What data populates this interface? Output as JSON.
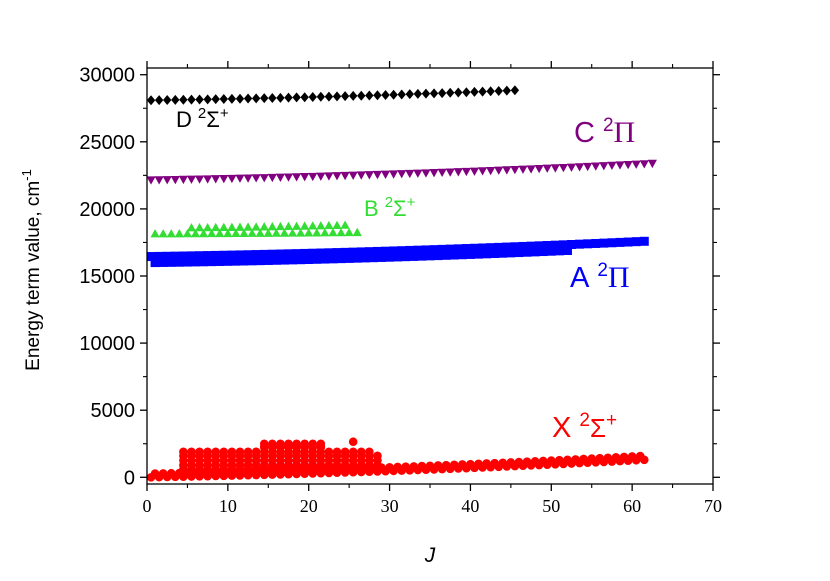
{
  "chart_data": {
    "type": "scatter",
    "title": "",
    "xlabel": "J",
    "ylabel": "Energy term value, cm",
    "ylabel_superscript": "-1",
    "xlim": [
      0,
      70
    ],
    "ylim": [
      -500,
      30500
    ],
    "xticks": [
      0,
      10,
      20,
      30,
      40,
      50,
      60,
      70
    ],
    "yticks": [
      0,
      5000,
      10000,
      15000,
      20000,
      25000,
      30000
    ],
    "grid": false,
    "series": [
      {
        "key": "D",
        "letter": "D",
        "superscript": "2",
        "symbol": "Σ",
        "sign": "+",
        "color": "#000000",
        "marker": "diamond",
        "x_start": 0.5,
        "x_end": 46,
        "x_step": 1,
        "y_start": 28100,
        "y_end": 28850,
        "label_color": "#000000"
      },
      {
        "key": "C",
        "letter": "C",
        "superscript": "2",
        "symbol": "Π",
        "sign": "",
        "color": "#800080",
        "marker": "triangle-down",
        "x_start": 0.5,
        "x_end": 63,
        "x_step": 1,
        "y_start": 22150,
        "y_end": 23400,
        "label_color": "#800080"
      },
      {
        "key": "B",
        "letter": "B",
        "superscript": "2",
        "symbol": "Σ",
        "sign": "+",
        "color": "#33dd33",
        "marker": "triangle-up",
        "rows": [
          {
            "x_start": 1,
            "x_end": 26,
            "y_start": 18150,
            "y_end": 18250
          },
          {
            "x_start": 5.5,
            "x_end": 25,
            "y_start": 18600,
            "y_end": 18800
          }
        ],
        "x_step": 1,
        "label_color": "#33dd33"
      },
      {
        "key": "A",
        "letter": "A",
        "superscript": "2",
        "symbol": "Π",
        "sign": "",
        "color": "#0000ff",
        "marker": "square",
        "rows": [
          {
            "x_start": 0.5,
            "x_end": 62,
            "y_start": 16450,
            "y_end": 17600
          },
          {
            "x_start": 1,
            "x_end": 52,
            "y_start": 16000,
            "y_end": 16900
          }
        ],
        "x_step": 1,
        "label_color": "#0000ff"
      },
      {
        "key": "X",
        "letter": "X",
        "superscript": "2",
        "symbol": "Σ",
        "sign": "+",
        "color": "#ff0000",
        "marker": "circle",
        "rows": [
          {
            "x_start": 0.5,
            "x_end": 61.5,
            "y_start": 0,
            "y_end": 1300
          },
          {
            "x_start": 1,
            "x_end": 61.5,
            "y_start": 280,
            "y_end": 1600
          },
          {
            "x_start": 4.5,
            "x_end": 29,
            "y_start": 580,
            "y_end": 580
          },
          {
            "x_start": 4.5,
            "x_end": 29,
            "y_start": 900,
            "y_end": 900
          },
          {
            "x_start": 4.5,
            "x_end": 29,
            "y_start": 1250,
            "y_end": 1250
          },
          {
            "x_start": 4.5,
            "x_end": 29,
            "y_start": 1600,
            "y_end": 1600
          },
          {
            "x_start": 4.5,
            "x_end": 28,
            "y_start": 1900,
            "y_end": 1900
          },
          {
            "x_start": 14.5,
            "x_end": 22,
            "y_start": 2250,
            "y_end": 2250
          },
          {
            "x_start": 14.5,
            "x_end": 22,
            "y_start": 2500,
            "y_end": 2500
          }
        ],
        "extra_points": [
          [
            25.5,
            2650
          ]
        ],
        "x_step": 1,
        "label_color": "#ff0000"
      }
    ]
  }
}
